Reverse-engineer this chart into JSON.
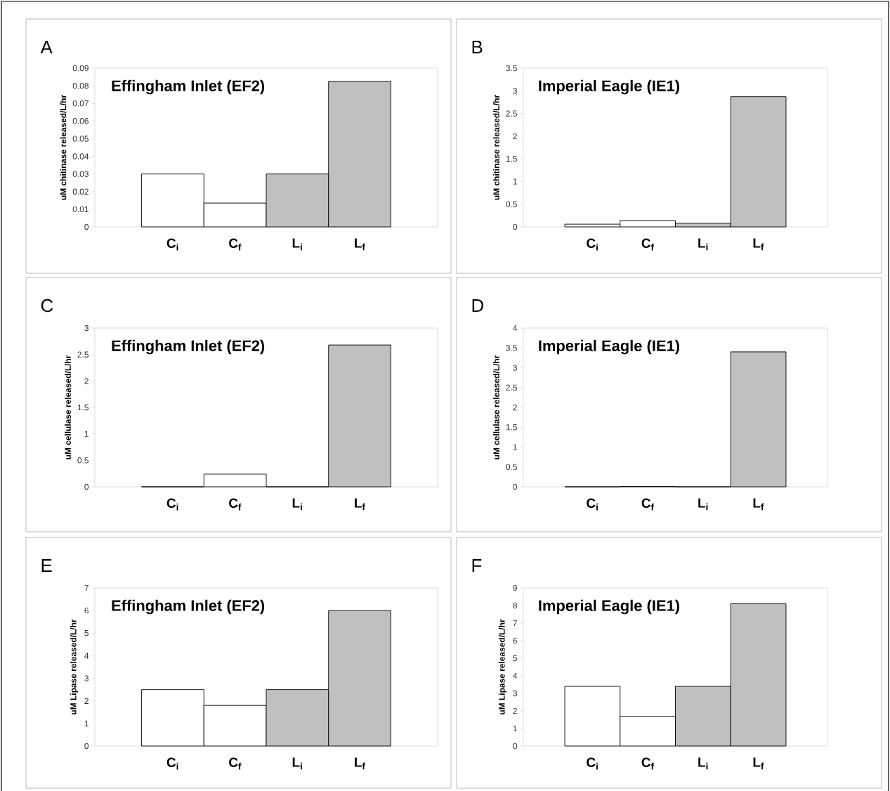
{
  "chart_data": [
    {
      "type": "bar",
      "title": "A",
      "subtitle": "Effingham Inlet (EF2)",
      "ylabel": "uM chitinase released/L/hr",
      "categories": [
        "C$_{i}$",
        "C$_{f}$",
        "L$_{i}$",
        "L$_{f}$"
      ],
      "values": [
        0.03,
        0.0135,
        0.03,
        0.0825
      ],
      "colors": [
        "#ffffff",
        "#ffffff",
        "#c0c0c0",
        "#c0c0c0"
      ],
      "ylim": [
        0,
        0.09
      ],
      "yticks": [
        0,
        0.01,
        0.02,
        0.03,
        0.04,
        0.05,
        0.06,
        0.07,
        0.08,
        0.09
      ]
    },
    {
      "type": "bar",
      "title": "B",
      "subtitle": "Imperial Eagle (IE1)",
      "ylabel": "uM chitinase released/L/hr",
      "categories": [
        "C$_{i}$",
        "C$_{f}$",
        "L$_{i}$",
        "L$_{f}$"
      ],
      "values": [
        0.06,
        0.14,
        0.08,
        2.87
      ],
      "colors": [
        "#ffffff",
        "#ffffff",
        "#c0c0c0",
        "#c0c0c0"
      ],
      "ylim": [
        0,
        3.5
      ],
      "yticks": [
        0,
        0.5,
        1,
        1.5,
        2,
        2.5,
        3,
        3.5
      ]
    },
    {
      "type": "bar",
      "title": "C",
      "subtitle": "Effingham Inlet (EF2)",
      "ylabel": "uM cellulase released/L/hr",
      "categories": [
        "C$_{i}$",
        "C$_{f}$",
        "L$_{i}$",
        "L$_{f}$"
      ],
      "values": [
        0,
        0.24,
        0,
        2.68
      ],
      "colors": [
        "#ffffff",
        "#ffffff",
        "#c0c0c0",
        "#c0c0c0"
      ],
      "ylim": [
        0,
        3
      ],
      "yticks": [
        0,
        0.5,
        1,
        1.5,
        2,
        2.5,
        3
      ]
    },
    {
      "type": "bar",
      "title": "D",
      "subtitle": "Imperial Eagle (IE1)",
      "ylabel": "uM cellulase released/L/hr",
      "categories": [
        "C$_{i}$",
        "C$_{f}$",
        "L$_{i}$",
        "L$_{f}$"
      ],
      "values": [
        0,
        0.01,
        0,
        3.4
      ],
      "colors": [
        "#ffffff",
        "#ffffff",
        "#c0c0c0",
        "#c0c0c0"
      ],
      "ylim": [
        0,
        4
      ],
      "yticks": [
        0,
        0.5,
        1,
        1.5,
        2,
        2.5,
        3,
        3.5,
        4
      ]
    },
    {
      "type": "bar",
      "title": "E",
      "subtitle": "Effingham Inlet (EF2)",
      "ylabel": "uM Lipase released/L/hr",
      "categories": [
        "C$_{i}$",
        "C$_{f}$",
        "L$_{i}$",
        "L$_{f}$"
      ],
      "values": [
        2.5,
        1.8,
        2.5,
        6.0
      ],
      "colors": [
        "#ffffff",
        "#ffffff",
        "#c0c0c0",
        "#c0c0c0"
      ],
      "ylim": [
        0,
        7
      ],
      "yticks": [
        0,
        1,
        2,
        3,
        4,
        5,
        6,
        7
      ]
    },
    {
      "type": "bar",
      "title": "F",
      "subtitle": "Imperial Eagle (IE1)",
      "ylabel": "uM Lipase released/L/hr",
      "categories": [
        "C$_{i}$",
        "C$_{f}$",
        "L$_{i}$",
        "L$_{f}$"
      ],
      "values": [
        3.4,
        1.7,
        3.4,
        8.1
      ],
      "colors": [
        "#ffffff",
        "#ffffff",
        "#c0c0c0",
        "#c0c0c0"
      ],
      "ylim": [
        0,
        9
      ],
      "yticks": [
        0,
        1,
        2,
        3,
        4,
        5,
        6,
        7,
        8,
        9
      ]
    }
  ]
}
